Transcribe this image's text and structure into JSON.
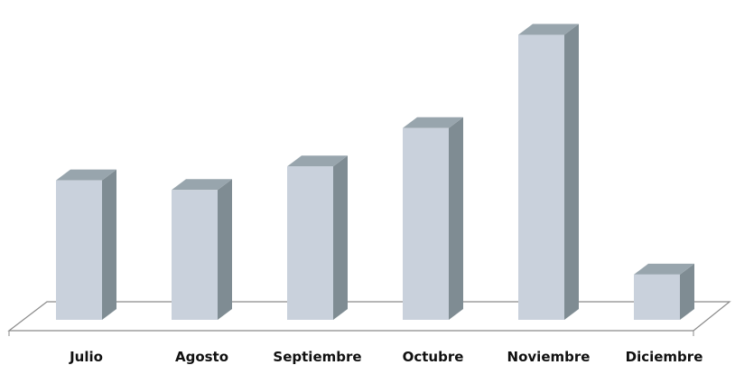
{
  "chart_data": {
    "type": "bar",
    "style": "3d-column",
    "categories": [
      "Julio",
      "Agosto",
      "Septiembre",
      "Octubre",
      "Noviembre",
      "Diciembre"
    ],
    "values": [
      160,
      149,
      176,
      220,
      327,
      52
    ],
    "ylim": [
      0,
      340
    ],
    "grid": false,
    "legend": "none",
    "colors": {
      "bar_front": "#c9d1dc",
      "bar_side": "#7f8c93",
      "bar_top": "#98a5ad",
      "floor_stroke": "#8a8a8a"
    }
  }
}
